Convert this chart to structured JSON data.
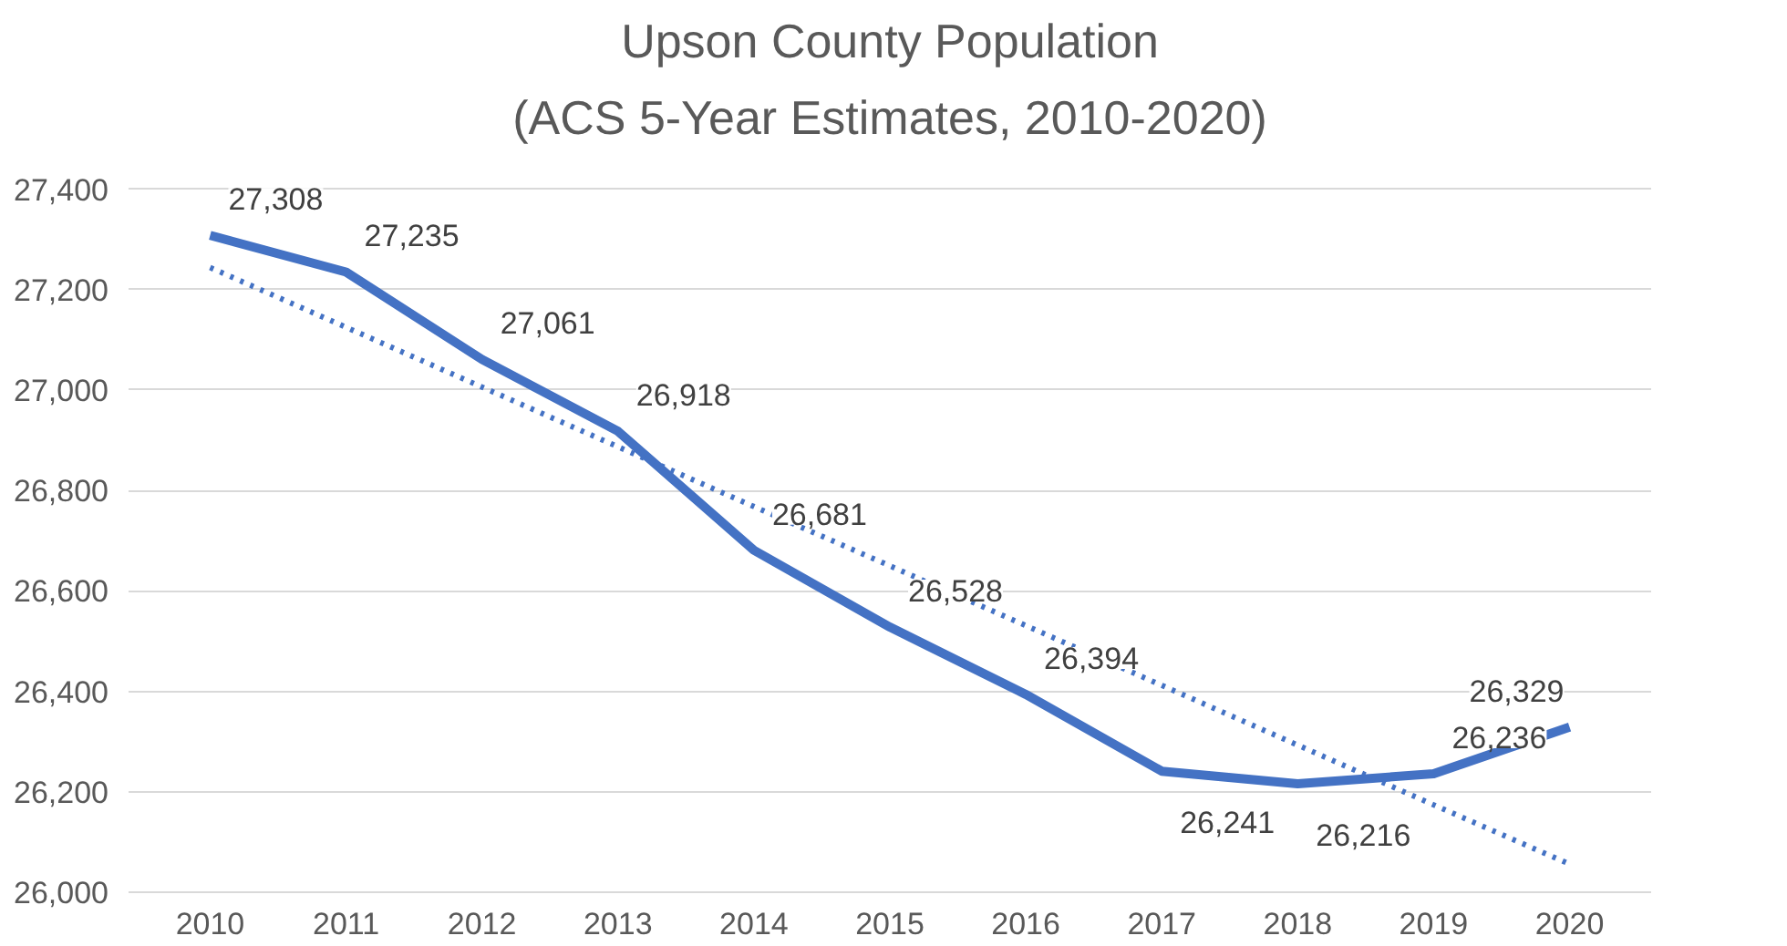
{
  "chart_data": {
    "type": "line",
    "title": "Upson County Population",
    "subtitle": "(ACS 5-Year Estimates, 2010-2020)",
    "categories": [
      "2010",
      "2011",
      "2012",
      "2013",
      "2014",
      "2015",
      "2016",
      "2017",
      "2018",
      "2019",
      "2020"
    ],
    "series": [
      {
        "color": "#4472c4",
        "line_style": "solid",
        "values": [
          27308,
          27235,
          27061,
          26918,
          26681,
          26528,
          26394,
          26241,
          26216,
          26236,
          26329
        ],
        "value_labels": [
          "27,308",
          "27,235",
          "27,061",
          "26,918",
          "26,681",
          "26,528",
          "26,394",
          "26,241",
          "26,216",
          "26,236",
          "26,329"
        ]
      },
      {
        "color": "#4472c4",
        "line_style": "dotted",
        "values": [
          27244,
          27125,
          27006,
          26887,
          26768,
          26650,
          26531,
          26412,
          26293,
          26174,
          26056
        ]
      }
    ],
    "ylim": [
      26000,
      27400
    ],
    "yticks": [
      {
        "value": 26000,
        "label": "26,000"
      },
      {
        "value": 26200,
        "label": "26,200"
      },
      {
        "value": 26400,
        "label": "26,400"
      },
      {
        "value": 26600,
        "label": "26,600"
      },
      {
        "value": 26800,
        "label": "26,800"
      },
      {
        "value": 27000,
        "label": "27,000"
      },
      {
        "value": 27200,
        "label": "27,200"
      },
      {
        "value": 27400,
        "label": "27,400"
      }
    ],
    "grid": "y",
    "marker": "none"
  }
}
